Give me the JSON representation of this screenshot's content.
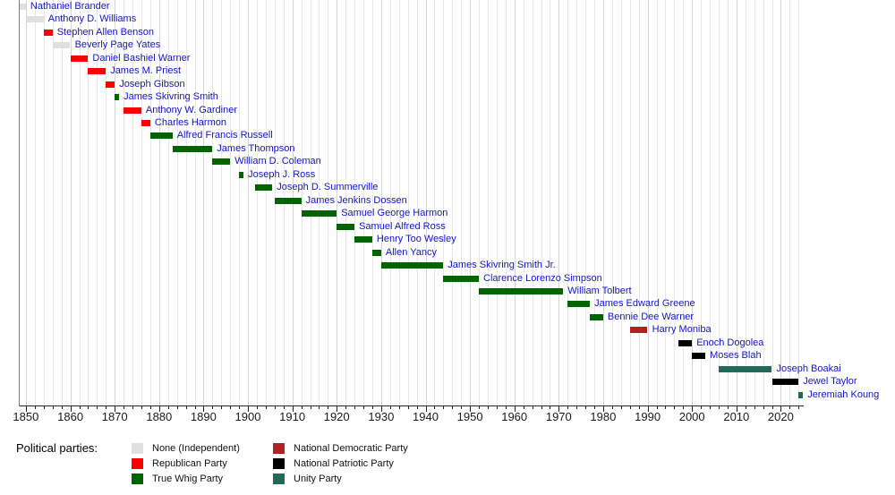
{
  "chart_data": {
    "type": "timeline",
    "x_axis": {
      "domain": [
        1848.5,
        2025.2
      ],
      "tick_start": 1850,
      "tick_end": 2024,
      "tick_interval": 2,
      "decade_labels": [
        "1850",
        "1860",
        "1870",
        "1880",
        "1890",
        "1900",
        "1910",
        "1920",
        "1930",
        "1940",
        "1950",
        "1960",
        "1970",
        "1980",
        "1990",
        "2000",
        "2010",
        "2020"
      ]
    },
    "parties": {
      "none": {
        "label": "None (Independent)",
        "color": "#e0e0e0"
      },
      "republican": {
        "label": "Republican Party",
        "color": "#ff0000"
      },
      "true_whig": {
        "label": "True Whig Party",
        "color": "#006400"
      },
      "national_democratic": {
        "label": "National Democratic Party",
        "color": "#b22222"
      },
      "national_patriotic": {
        "label": "National Patriotic Party",
        "color": "#000000"
      },
      "unity": {
        "label": "Unity Party",
        "color": "#206a56"
      }
    },
    "people": [
      {
        "name": "Nathaniel Brander",
        "start": 1848,
        "end": 1850,
        "party": "none"
      },
      {
        "name": "Anthony D. Williams",
        "start": 1850,
        "end": 1854,
        "party": "none"
      },
      {
        "name": "Stephen Allen Benson",
        "start": 1854,
        "end": 1856,
        "party": "republican"
      },
      {
        "name": "Beverly Page Yates",
        "start": 1856,
        "end": 1860,
        "party": "none"
      },
      {
        "name": "Daniel Bashiel Warner",
        "start": 1860,
        "end": 1864,
        "party": "republican"
      },
      {
        "name": "James M. Priest",
        "start": 1864,
        "end": 1868,
        "party": "republican"
      },
      {
        "name": "Joseph Gibson",
        "start": 1868,
        "end": 1870,
        "party": "republican"
      },
      {
        "name": "James Skivring Smith",
        "start": 1870,
        "end": 1871,
        "party": "true_whig"
      },
      {
        "name": "Anthony W. Gardiner",
        "start": 1872,
        "end": 1876,
        "party": "republican"
      },
      {
        "name": "Charles Harmon",
        "start": 1876,
        "end": 1878,
        "party": "republican"
      },
      {
        "name": "Alfred Francis Russell",
        "start": 1878,
        "end": 1883,
        "party": "true_whig"
      },
      {
        "name": "James Thompson",
        "start": 1883,
        "end": 1892,
        "party": "true_whig"
      },
      {
        "name": "William D. Coleman",
        "start": 1892,
        "end": 1896,
        "party": "true_whig"
      },
      {
        "name": "Joseph J. Ross",
        "start": 1898,
        "end": 1899,
        "party": "true_whig"
      },
      {
        "name": "Joseph D. Summerville",
        "start": 1901.5,
        "end": 1905.5,
        "party": "true_whig"
      },
      {
        "name": "James Jenkins Dossen",
        "start": 1906,
        "end": 1912,
        "party": "true_whig"
      },
      {
        "name": "Samuel George Harmon",
        "start": 1912,
        "end": 1920,
        "party": "true_whig"
      },
      {
        "name": "Samuel Alfred Ross",
        "start": 1920,
        "end": 1924,
        "party": "true_whig"
      },
      {
        "name": "Henry Too Wesley",
        "start": 1924,
        "end": 1928,
        "party": "true_whig"
      },
      {
        "name": "Allen Yancy",
        "start": 1928,
        "end": 1930,
        "party": "true_whig"
      },
      {
        "name": "James Skivring Smith Jr.",
        "start": 1930,
        "end": 1944,
        "party": "true_whig"
      },
      {
        "name": "Clarence Lorenzo Simpson",
        "start": 1944,
        "end": 1952,
        "party": "true_whig"
      },
      {
        "name": "William Tolbert",
        "start": 1952,
        "end": 1971,
        "party": "true_whig"
      },
      {
        "name": "James Edward Greene",
        "start": 1972,
        "end": 1977,
        "party": "true_whig"
      },
      {
        "name": "Bennie Dee Warner",
        "start": 1977,
        "end": 1980,
        "party": "true_whig"
      },
      {
        "name": "Harry Moniba",
        "start": 1986,
        "end": 1990,
        "party": "national_democratic"
      },
      {
        "name": "Enoch Dogolea",
        "start": 1997,
        "end": 2000,
        "party": "national_patriotic"
      },
      {
        "name": "Moses Blah",
        "start": 2000,
        "end": 2003,
        "party": "national_patriotic"
      },
      {
        "name": "Joseph Boakai",
        "start": 2006,
        "end": 2018,
        "party": "unity"
      },
      {
        "name": "Jewel Taylor",
        "start": 2018,
        "end": 2024,
        "party": "national_patriotic"
      },
      {
        "name": "Jeremiah Koung",
        "start": 2024,
        "end": 2025,
        "party": "unity"
      }
    ]
  },
  "legend": {
    "title": "Political parties:",
    "columns": [
      [
        "none",
        "republican",
        "true_whig"
      ],
      [
        "national_democratic",
        "national_patriotic",
        "unity"
      ]
    ]
  }
}
